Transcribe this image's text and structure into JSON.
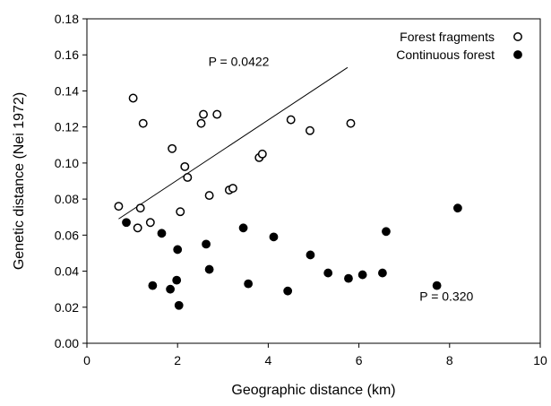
{
  "chart_data": {
    "type": "scatter",
    "title": "",
    "xlabel": "Geographic distance (km)",
    "ylabel": "Genetic distance (Nei 1972)",
    "xlim": [
      0,
      10
    ],
    "ylim": [
      0,
      0.18
    ],
    "x_ticks": [
      "0",
      "2",
      "4",
      "6",
      "8",
      "10"
    ],
    "y_ticks": [
      "0.00",
      "0.02",
      "0.04",
      "0.06",
      "0.08",
      "0.10",
      "0.12",
      "0.14",
      "0.16",
      "0.18"
    ],
    "x_tick_values": [
      0,
      2,
      4,
      6,
      8,
      10
    ],
    "y_tick_values": [
      0,
      0.02,
      0.04,
      0.06,
      0.08,
      0.1,
      0.12,
      0.14,
      0.16,
      0.18
    ],
    "grid": false,
    "legend_position": "top-right",
    "series": [
      {
        "name": "Forest fragments",
        "marker": "open-circle",
        "color": "#000000",
        "points": [
          [
            0.7,
            0.076
          ],
          [
            1.02,
            0.136
          ],
          [
            1.12,
            0.064
          ],
          [
            1.18,
            0.075
          ],
          [
            1.24,
            0.122
          ],
          [
            1.4,
            0.067
          ],
          [
            1.88,
            0.108
          ],
          [
            2.06,
            0.073
          ],
          [
            2.16,
            0.098
          ],
          [
            2.22,
            0.092
          ],
          [
            2.52,
            0.122
          ],
          [
            2.57,
            0.127
          ],
          [
            2.7,
            0.082
          ],
          [
            2.87,
            0.127
          ],
          [
            3.14,
            0.085
          ],
          [
            3.22,
            0.086
          ],
          [
            3.8,
            0.103
          ],
          [
            3.87,
            0.105
          ],
          [
            4.5,
            0.124
          ],
          [
            4.92,
            0.118
          ],
          [
            5.82,
            0.122
          ]
        ]
      },
      {
        "name": "Continuous forest",
        "marker": "filled-circle",
        "color": "#000000",
        "points": [
          [
            0.87,
            0.067
          ],
          [
            1.45,
            0.032
          ],
          [
            1.65,
            0.061
          ],
          [
            1.84,
            0.03
          ],
          [
            1.98,
            0.035
          ],
          [
            2.0,
            0.052
          ],
          [
            2.03,
            0.021
          ],
          [
            2.63,
            0.055
          ],
          [
            2.7,
            0.041
          ],
          [
            3.45,
            0.064
          ],
          [
            3.56,
            0.033
          ],
          [
            4.12,
            0.059
          ],
          [
            4.43,
            0.029
          ],
          [
            4.93,
            0.049
          ],
          [
            5.32,
            0.039
          ],
          [
            5.77,
            0.036
          ],
          [
            6.08,
            0.038
          ],
          [
            6.52,
            0.039
          ],
          [
            6.6,
            0.062
          ],
          [
            7.72,
            0.032
          ],
          [
            8.18,
            0.075
          ]
        ]
      }
    ],
    "regression_line": {
      "x": [
        0.7,
        5.75
      ],
      "y": [
        0.069,
        0.153
      ]
    },
    "annotations": [
      {
        "text": "P = 0.0422",
        "x": 3.35,
        "y": 0.154
      },
      {
        "text": "P = 0.320",
        "x": 7.93,
        "y": 0.0235
      }
    ]
  }
}
